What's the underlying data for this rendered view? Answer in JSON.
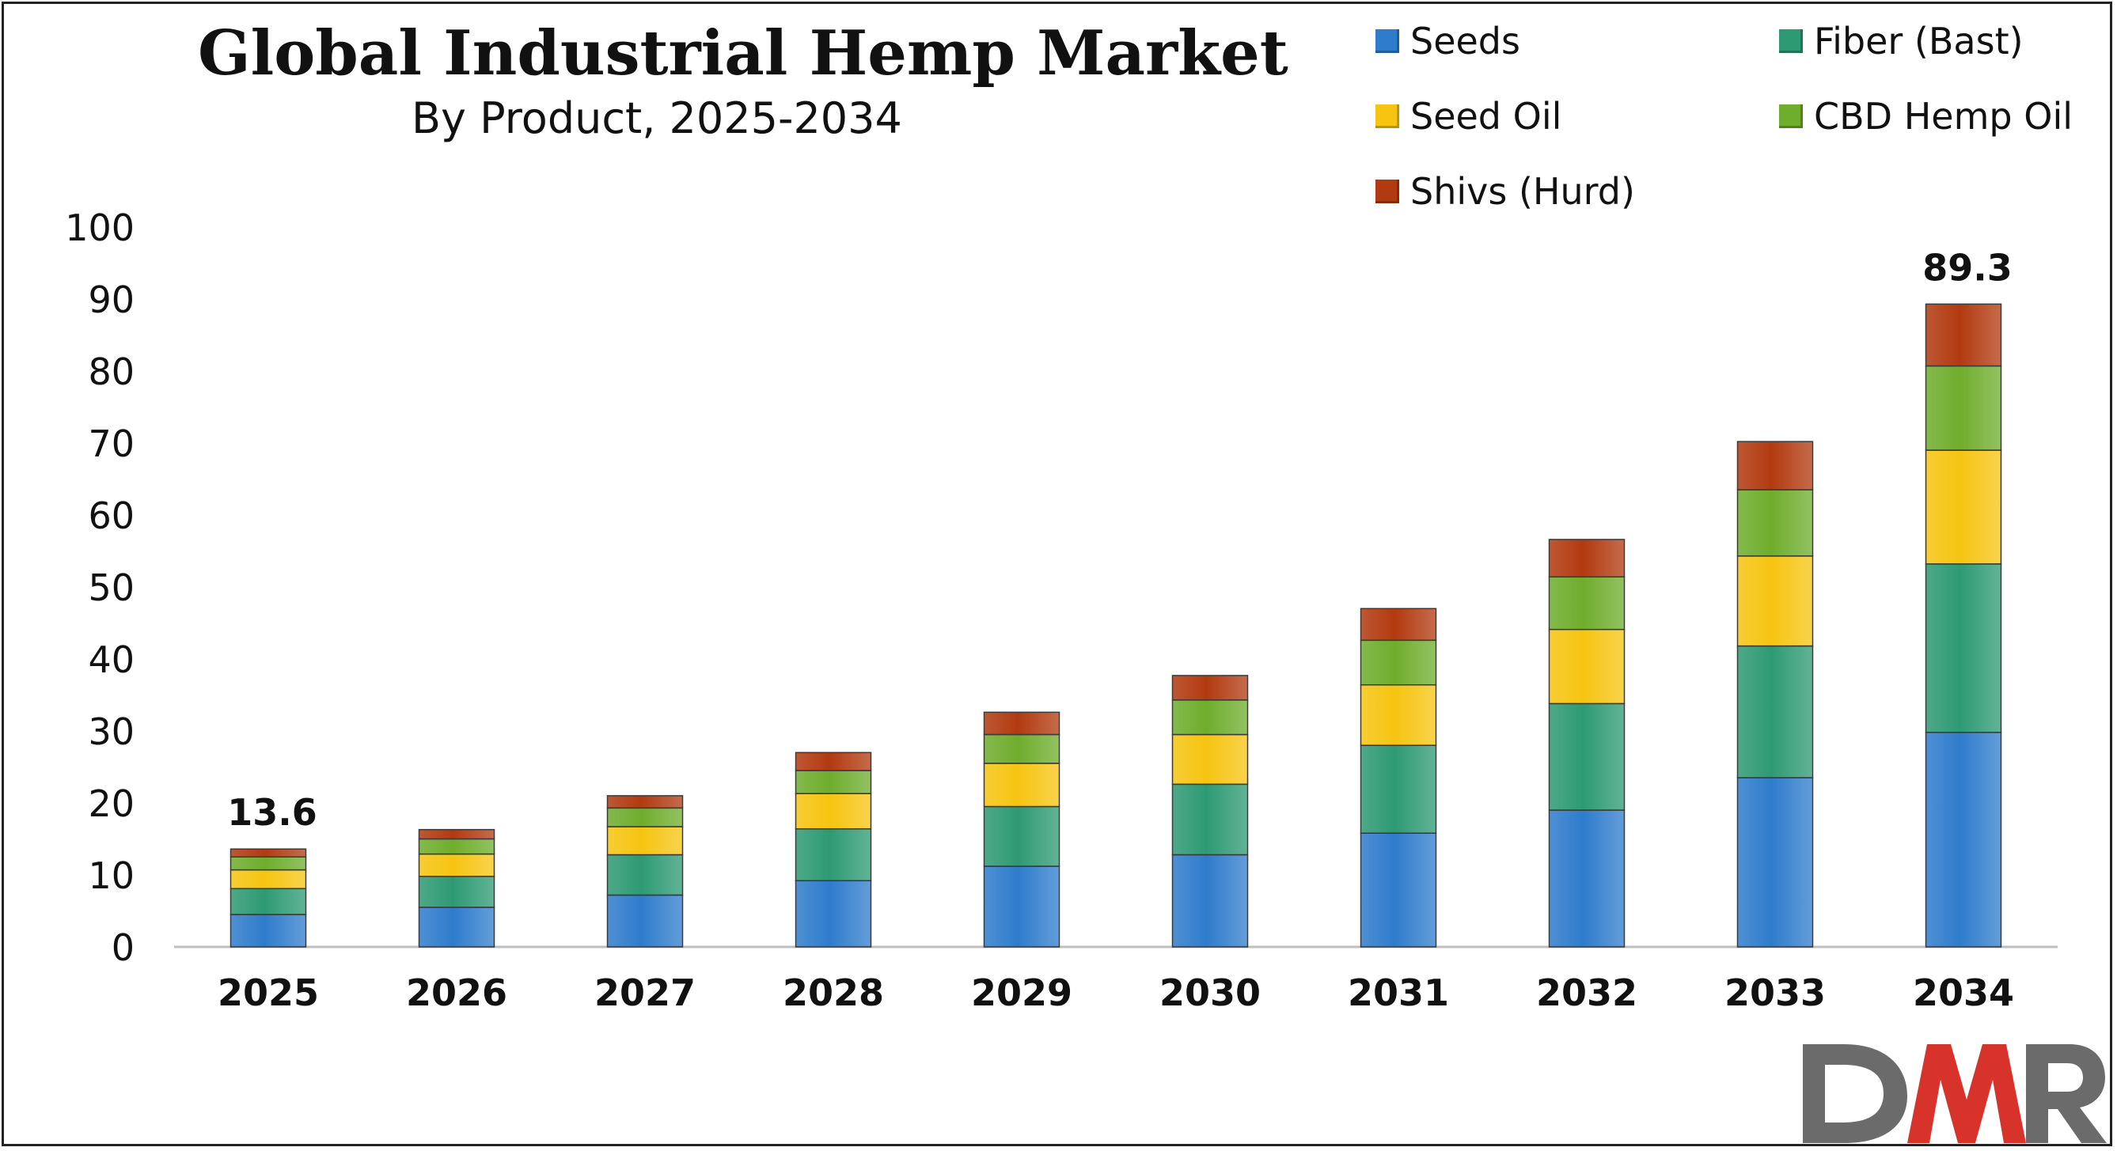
{
  "chart_data": {
    "type": "bar",
    "stacked": true,
    "title": "Global Industrial Hemp Market",
    "subtitle": "By Product, 2025-2034",
    "categories": [
      "2025",
      "2026",
      "2027",
      "2028",
      "2029",
      "2030",
      "2031",
      "2032",
      "2033",
      "2034"
    ],
    "series": [
      {
        "name": "Seeds",
        "color": "#2f7ccc",
        "values": [
          4.5,
          5.5,
          7.2,
          9.2,
          11.2,
          12.8,
          15.8,
          19.0,
          23.5,
          29.8
        ]
      },
      {
        "name": "Fiber (Bast)",
        "color": "#2e9a73",
        "values": [
          3.6,
          4.3,
          5.6,
          7.2,
          8.3,
          9.8,
          12.2,
          14.8,
          18.3,
          23.4
        ]
      },
      {
        "name": "Seed Oil",
        "color": "#f6c411",
        "values": [
          2.6,
          3.1,
          3.9,
          4.9,
          6.0,
          6.9,
          8.4,
          10.3,
          12.5,
          15.8
        ]
      },
      {
        "name": "CBD Hemp Oil",
        "color": "#6fad2d",
        "values": [
          1.8,
          2.1,
          2.6,
          3.2,
          4.0,
          4.8,
          6.2,
          7.3,
          9.2,
          11.7
        ]
      },
      {
        "name": "Shivs (Hurd)",
        "color": "#b23a10",
        "values": [
          1.1,
          1.3,
          1.7,
          2.5,
          3.1,
          3.4,
          4.4,
          5.2,
          6.7,
          8.6
        ]
      }
    ],
    "data_labels": [
      {
        "category": "2025",
        "text": "13.6"
      },
      {
        "category": "2034",
        "text": "89.3"
      }
    ],
    "ylim": [
      0,
      100
    ],
    "yticks": [
      0,
      10,
      20,
      30,
      40,
      50,
      60,
      70,
      80,
      90,
      100
    ],
    "grid": false,
    "legend_position": "top-right"
  },
  "logo_text": "DMR",
  "colors": {
    "logo_gray": "#6b6b6b",
    "logo_red": "#d7332b"
  }
}
